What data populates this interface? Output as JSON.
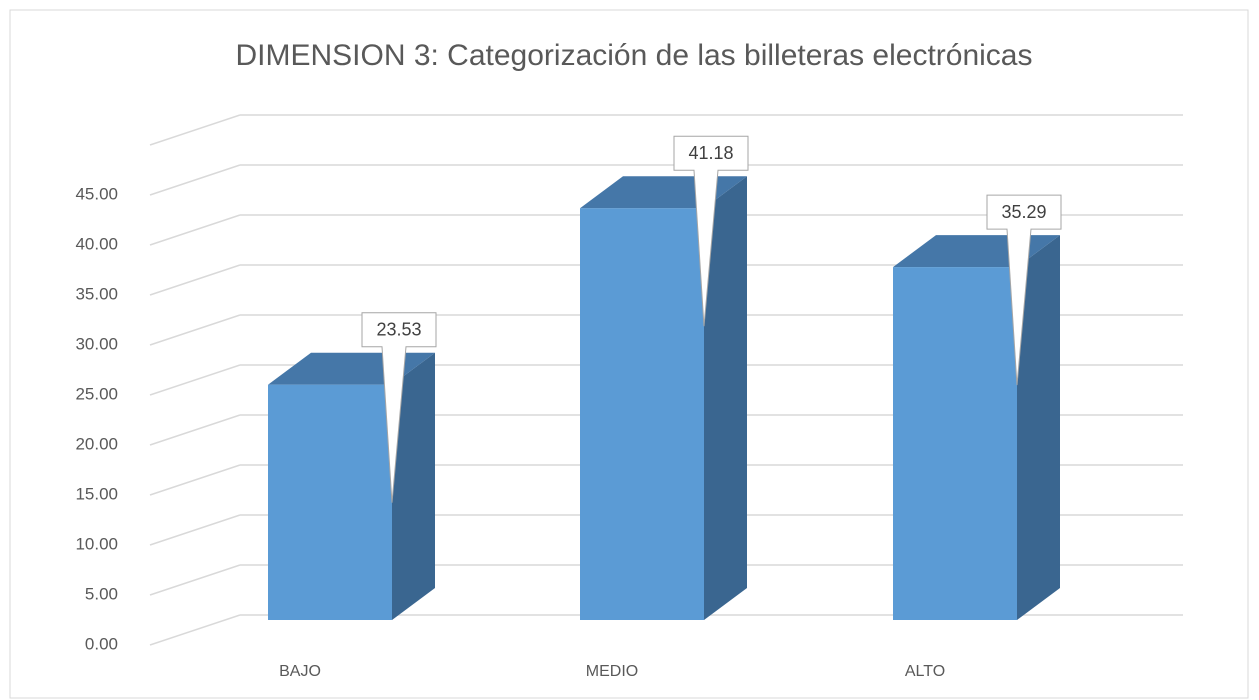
{
  "chart_data": {
    "type": "bar3d",
    "title": "DIMENSION 3: Categorización de las billeteras electrónicas",
    "categories": [
      "BAJO",
      "MEDIO",
      "ALTO"
    ],
    "values": [
      23.53,
      41.18,
      35.29
    ],
    "color": "#5b9bd5",
    "ylim": [
      0,
      50
    ],
    "yticks": [
      {
        "value": 0,
        "label": "0.00"
      },
      {
        "value": 5,
        "label": "5.00"
      },
      {
        "value": 10,
        "label": "10.00"
      },
      {
        "value": 15,
        "label": "15.00"
      },
      {
        "value": 20,
        "label": "20.00"
      },
      {
        "value": 25,
        "label": "25.00"
      },
      {
        "value": 30,
        "label": "30.00"
      },
      {
        "value": 35,
        "label": "35.00"
      },
      {
        "value": 40,
        "label": "40.00"
      },
      {
        "value": 45,
        "label": "45.00"
      }
    ],
    "grid": true
  }
}
